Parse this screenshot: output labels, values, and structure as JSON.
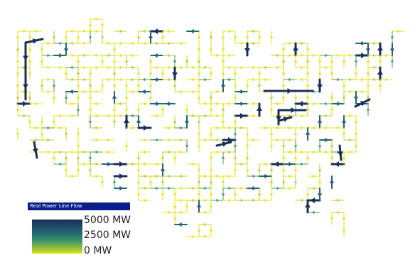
{
  "legend": {
    "title": "Real Power Line Flow",
    "max_label": "5000 MW",
    "mid_label": "2500 MW",
    "min_label": "0 MW",
    "colors": [
      "#1b2f57",
      "#22646f",
      "#4b9c61",
      "#bcd12a",
      "#e6e417"
    ]
  }
}
